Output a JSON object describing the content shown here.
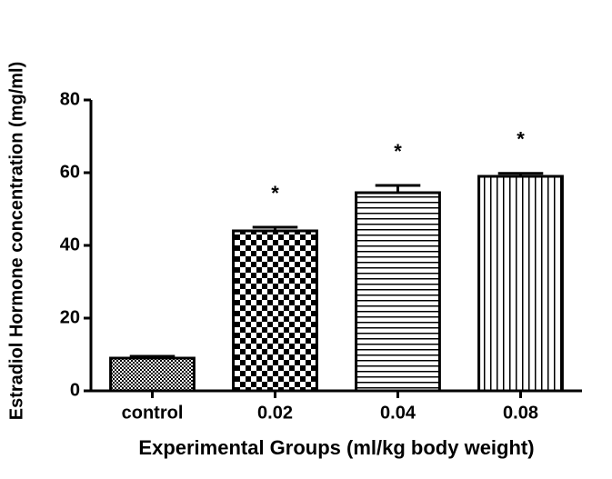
{
  "chart_data": {
    "type": "bar",
    "xlabel": "Experimental Groups (ml/kg body weight)",
    "ylabel": "Estradiol Hormone concentration (mg/ml)",
    "categories": [
      "control",
      "0.02",
      "0.04",
      "0.08"
    ],
    "values": [
      9,
      44,
      54.5,
      59
    ],
    "errors": [
      0.5,
      1,
      2,
      0.8
    ],
    "patterns": [
      "dots",
      "checker",
      "hlines",
      "vlines"
    ],
    "annotations": [
      {
        "x": "0.02",
        "text": "*"
      },
      {
        "x": "0.04",
        "text": "*"
      },
      {
        "x": "0.08",
        "text": "*"
      }
    ],
    "ylim": [
      0,
      80
    ],
    "yticks": [
      0,
      20,
      40,
      60,
      80
    ]
  }
}
